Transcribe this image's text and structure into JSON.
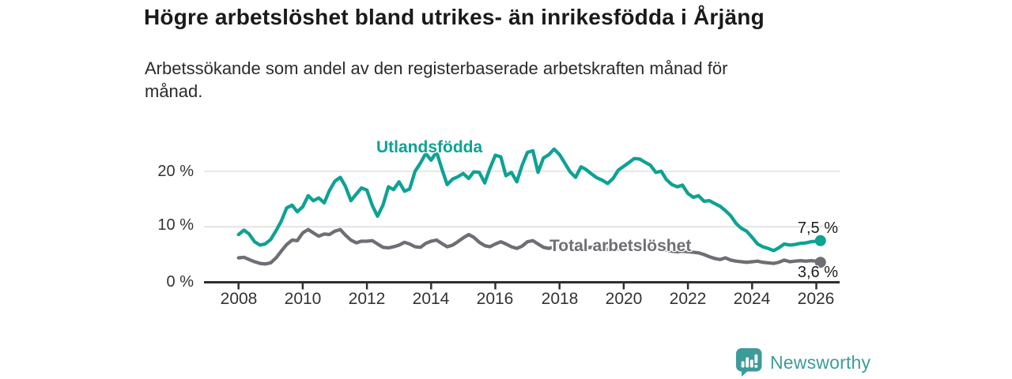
{
  "title": "Högre arbetslöshet bland utrikes- än inrikesfödda i Årjäng",
  "subtitle_lines": [
    "Arbetssökande som andel av den registerbaserade arbetskraften månad för",
    "månad."
  ],
  "branding": {
    "name": "Newsworthy",
    "color": "#3d9b99",
    "icon": "bar-chart-speech-bubble"
  },
  "chart_data": {
    "type": "line",
    "x_unit": "decimal_year",
    "xlim": [
      2007.8,
      2026.6
    ],
    "ylim": [
      0,
      25.5
    ],
    "grid": true,
    "grid_values": [
      20,
      10
    ],
    "grid_color": "#dadada",
    "axis_color": "#2f2f2f",
    "y_tick_labels": [
      "20 %",
      "10 %",
      "0 %"
    ],
    "y_tick_values": [
      20,
      10,
      0
    ],
    "x_tick_years": [
      2008,
      2010,
      2012,
      2014,
      2016,
      2018,
      2020,
      2022,
      2024,
      2026
    ],
    "x_tick_labels": [
      "2008",
      "2010",
      "2012",
      "2014",
      "2016",
      "2018",
      "2020",
      "2022",
      "2024",
      "2026"
    ],
    "x": [
      2008,
      2008.17,
      2008.33,
      2008.5,
      2008.67,
      2008.83,
      2009,
      2009.17,
      2009.33,
      2009.5,
      2009.67,
      2009.83,
      2010,
      2010.17,
      2010.33,
      2010.5,
      2010.67,
      2010.83,
      2011,
      2011.17,
      2011.33,
      2011.5,
      2011.67,
      2011.83,
      2012,
      2012.17,
      2012.33,
      2012.5,
      2012.67,
      2012.83,
      2013,
      2013.17,
      2013.33,
      2013.5,
      2013.67,
      2013.83,
      2014,
      2014.17,
      2014.33,
      2014.5,
      2014.67,
      2014.83,
      2015,
      2015.17,
      2015.33,
      2015.5,
      2015.67,
      2015.83,
      2016,
      2016.17,
      2016.33,
      2016.5,
      2016.67,
      2016.83,
      2017,
      2017.17,
      2017.33,
      2017.5,
      2017.67,
      2017.83,
      2018,
      2018.17,
      2018.33,
      2018.5,
      2018.67,
      2018.83,
      2019,
      2019.17,
      2019.33,
      2019.5,
      2019.67,
      2019.83,
      2020,
      2020.17,
      2020.33,
      2020.5,
      2020.67,
      2020.83,
      2021,
      2021.17,
      2021.33,
      2021.5,
      2021.67,
      2021.83,
      2022,
      2022.17,
      2022.33,
      2022.5,
      2022.67,
      2022.83,
      2023,
      2023.17,
      2023.33,
      2023.5,
      2023.67,
      2023.83,
      2024,
      2024.17,
      2024.33,
      2024.5,
      2024.67,
      2024.83,
      2025,
      2025.17,
      2025.33,
      2025.5,
      2025.67,
      2025.83,
      2026,
      2026.08
    ],
    "series": [
      {
        "name": "Utlandsfödda",
        "color": "#0ea293",
        "end_label": "7,5 %",
        "end_value": 7.5,
        "values": [
          8.6,
          9.4,
          8.7,
          7.3,
          6.7,
          6.9,
          7.7,
          9.3,
          11.0,
          13.4,
          13.9,
          12.7,
          13.6,
          15.6,
          14.7,
          15.2,
          14.3,
          16.5,
          18.2,
          18.9,
          17.3,
          14.7,
          15.9,
          17.0,
          16.6,
          13.8,
          11.9,
          13.9,
          17.2,
          16.7,
          18.1,
          16.4,
          16.8,
          20.0,
          21.5,
          23.2,
          22.0,
          23.5,
          20.5,
          17.6,
          18.6,
          19.0,
          19.6,
          18.7,
          19.9,
          19.8,
          17.9,
          20.5,
          22.9,
          22.6,
          19.2,
          19.8,
          18.1,
          21.0,
          23.4,
          23.7,
          19.8,
          22.4,
          23.0,
          24.0,
          23.0,
          21.4,
          19.9,
          18.9,
          20.8,
          20.3,
          19.5,
          18.8,
          18.4,
          17.8,
          18.7,
          20.2,
          20.9,
          21.6,
          22.3,
          22.2,
          21.6,
          21.1,
          19.8,
          20.0,
          18.5,
          17.6,
          17.2,
          17.5,
          16.0,
          15.3,
          15.6,
          14.6,
          14.7,
          14.2,
          13.7,
          12.9,
          12.0,
          10.6,
          9.7,
          9.2,
          8.1,
          6.9,
          6.4,
          6.1,
          5.7,
          6.2,
          6.9,
          6.7,
          6.8,
          7.0,
          7.1,
          7.3,
          7.4,
          7.5
        ]
      },
      {
        "name": "Total arbetslöshet",
        "color": "#6e6e74",
        "end_label": "3,6 %",
        "end_value": 3.6,
        "values": [
          4.4,
          4.5,
          4.1,
          3.7,
          3.4,
          3.3,
          3.5,
          4.4,
          5.6,
          6.8,
          7.6,
          7.5,
          8.9,
          9.5,
          8.9,
          8.3,
          8.7,
          8.6,
          9.2,
          9.5,
          8.5,
          7.6,
          7.1,
          7.4,
          7.4,
          7.5,
          6.9,
          6.3,
          6.2,
          6.4,
          6.7,
          7.2,
          6.9,
          6.4,
          6.3,
          7.0,
          7.4,
          7.6,
          7.0,
          6.4,
          6.7,
          7.3,
          8.0,
          8.6,
          8.1,
          7.2,
          6.6,
          6.4,
          6.9,
          7.3,
          6.9,
          6.4,
          6.1,
          6.5,
          7.3,
          7.5,
          6.9,
          6.3,
          6.1,
          6.4,
          6.6,
          6.8,
          6.4,
          6.1,
          6.0,
          6.2,
          6.3,
          6.4,
          6.1,
          5.9,
          5.8,
          6.0,
          6.2,
          6.5,
          6.7,
          6.6,
          6.4,
          6.2,
          6.1,
          6.0,
          5.8,
          5.6,
          5.5,
          5.6,
          5.5,
          5.4,
          5.3,
          5.0,
          4.6,
          4.3,
          4.1,
          4.4,
          4.0,
          3.8,
          3.7,
          3.6,
          3.7,
          3.8,
          3.6,
          3.5,
          3.4,
          3.6,
          4.0,
          3.7,
          3.8,
          3.9,
          3.8,
          3.9,
          3.8,
          3.6
        ]
      }
    ]
  }
}
